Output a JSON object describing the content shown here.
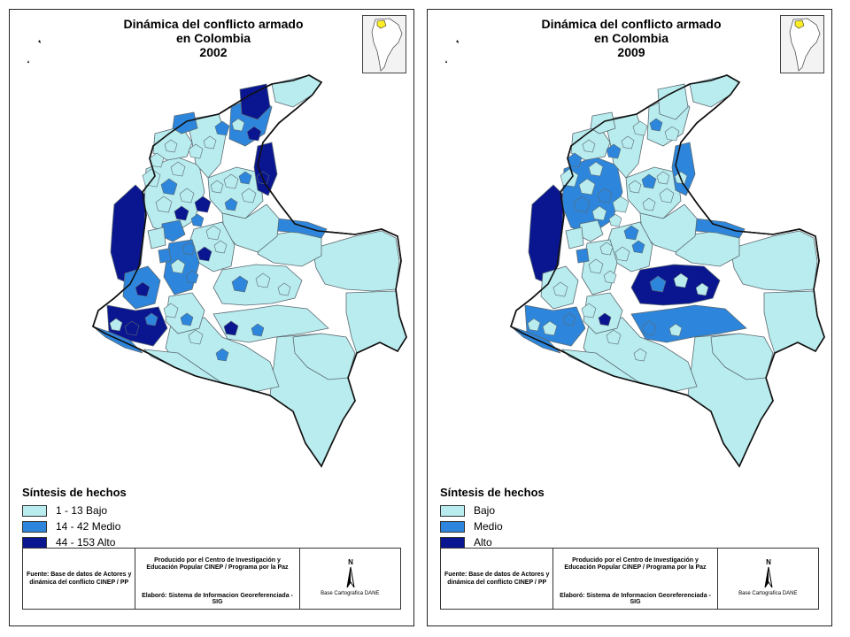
{
  "colors": {
    "low": "#b9ecee",
    "medium": "#2d86dc",
    "high": "#0a1590",
    "stroke": "#5a6a72",
    "outline": "#111111"
  },
  "panels": [
    {
      "title_lines": [
        "Dinámica del conflicto armado",
        "en Colombia",
        "2002"
      ],
      "legend": {
        "title": "Síntesis de hechos",
        "items": [
          {
            "label": "1 - 13  Bajo",
            "level": "low"
          },
          {
            "label": "14 - 42  Medio",
            "level": "medium"
          },
          {
            "label": "44 - 153  Alto",
            "level": "high"
          }
        ]
      },
      "footer": {
        "fuente": "Fuente:  Base de datos de Actores y dinámica del conflicto CINEP / PP",
        "producido": "Producido por el Centro de Investigación y Educación Popular CINEP / Programa por la Paz",
        "elaboro": "Elaboró:  Sistema de Informacion Georeferenciada - SIG",
        "north": "N",
        "base": "Base Cartografica DANE"
      }
    },
    {
      "title_lines": [
        "Dinámica del conflicto armado",
        "en Colombia",
        "2009"
      ],
      "legend": {
        "title": "Síntesis de hechos",
        "items": [
          {
            "label": "Bajo",
            "level": "low"
          },
          {
            "label": "Medio",
            "level": "medium"
          },
          {
            "label": "Alto",
            "level": "high"
          }
        ]
      },
      "footer": {
        "fuente": "Fuente:  Base de datos de Actores y dinámica del conflicto CINEP / PP",
        "producido": "Producido por el Centro de Investigación y Educación Popular CINEP / Programa por la Paz",
        "elaboro": "Elaboró:  Sistema de Informacion Georeferenciada - SIG",
        "north": "N",
        "base": "Base Cartografica DANE"
      }
    }
  ]
}
